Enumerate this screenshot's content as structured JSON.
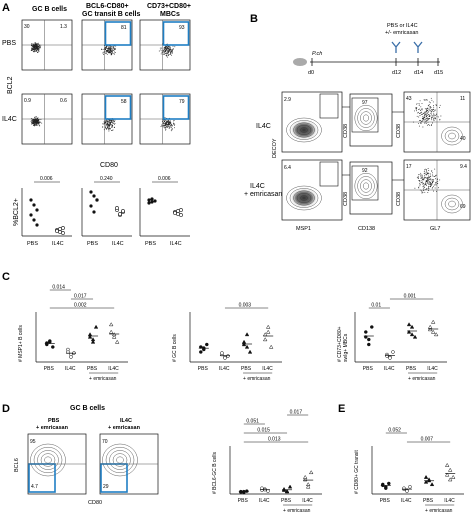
{
  "panels": {
    "A": {
      "letter": "A",
      "headers": [
        "GC B cells",
        "BCL6-CD80+\nGC transit B cells",
        "CD73+CD80+\nMBCs"
      ],
      "row_labels": [
        "PBS",
        "IL4C"
      ],
      "y_axis": "BCL2",
      "x_axis": "CD80",
      "quadrants": {
        "gc": {
          "pbs": [
            "30",
            "1.3"
          ],
          "il4c": [
            "0.9",
            "0.6"
          ]
        },
        "transit": {
          "pbs": "81",
          "il4c": "58"
        },
        "mbc": {
          "pbs": "93",
          "il4c": "79"
        }
      },
      "dot": {
        "ylabel": "%BCL2+",
        "xlabels": [
          "PBS",
          "IL4C"
        ],
        "pvals": [
          "0.006",
          "0.240",
          "0.006"
        ]
      }
    },
    "B": {
      "letter": "B",
      "timeline": {
        "label_top": "PBS or IL4C\n+/- emricasan",
        "mouse": "P.ch",
        "days": [
          "d0",
          "d12",
          "d14",
          "d15"
        ]
      },
      "rows": [
        "IL4C",
        "IL4C\n+ emricasan"
      ],
      "axes": {
        "decoy": "DECOY",
        "msp1": "MSP1",
        "cd38": "CD38",
        "cd138": "CD138",
        "gl7": "GL7"
      },
      "gates": {
        "row1": {
          "g1": "2.9",
          "g2": "97",
          "g3_tl": "43",
          "g3_tr": "11",
          "g3_br": "40"
        },
        "row2": {
          "g1": "6.4",
          "g2": "92",
          "g3_tl": "17",
          "g3_tr": "9.4",
          "g3_br": "69"
        }
      }
    },
    "C": {
      "letter": "C",
      "plots": [
        {
          "ylabel": "# MSP1+ B cells",
          "pvals": [
            "0.002",
            "0.017",
            "0.014"
          ],
          "xlabels": [
            "PBS",
            "IL4C",
            "PBS",
            "IL4C"
          ],
          "group": "+ emricasan"
        },
        {
          "ylabel": "# GC B cells",
          "pvals": [
            "0.003"
          ],
          "xlabels": [
            "PBS",
            "IL4C",
            "PBS",
            "IL4C"
          ],
          "group": "+ emricasan"
        },
        {
          "ylabel": "# CD73+CD80+\nswIg+ MBCs",
          "pvals": [
            "0.01",
            "0.001"
          ],
          "xlabels": [
            "PBS",
            "IL4C",
            "PBS",
            "IL4C"
          ],
          "group": "+ emricasan"
        }
      ]
    },
    "D": {
      "letter": "D",
      "header": "GC B cells",
      "conds": [
        "PBS\n+ emricasan",
        "IL4C\n+ emricasan"
      ],
      "y_axis": "BCL6",
      "x_axis": "CD80",
      "gates": {
        "left": [
          "95",
          "4.7"
        ],
        "right": [
          "70",
          "29"
        ]
      },
      "dot": {
        "ylabel": "# BCL6-GC B cells",
        "pvals": [
          "0.013",
          "0.015",
          "0.051",
          "0.017"
        ],
        "xlabels": [
          "PBS",
          "IL4C",
          "PBS",
          "IL4C"
        ],
        "group": "+ emricasan"
      }
    },
    "E": {
      "letter": "E",
      "dot": {
        "ylabel": "# CD80+ GC transit",
        "pvals": [
          "0.007",
          "0.052"
        ],
        "xlabels": [
          "PBS",
          "IL4C",
          "PBS",
          "IL4C"
        ],
        "group": "+ emricasan"
      }
    }
  },
  "colors": {
    "gate_blue": "#1f7fc4",
    "axis": "#111111"
  }
}
